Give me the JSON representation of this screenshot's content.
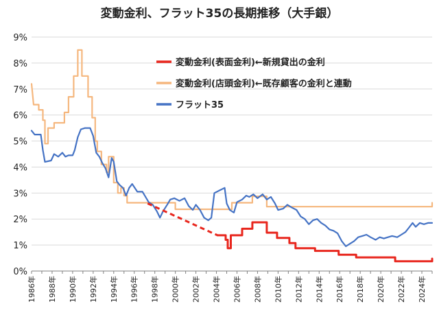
{
  "chart_data": {
    "type": "line",
    "title": "変動金利、フラット35の長期推移（大手銀）",
    "ylim": [
      0,
      9
    ],
    "xlim": [
      1986,
      2025
    ],
    "y_ticks": [
      {
        "value": 0,
        "label": "0%"
      },
      {
        "value": 1,
        "label": "1%"
      },
      {
        "value": 2,
        "label": "2%"
      },
      {
        "value": 3,
        "label": "3%"
      },
      {
        "value": 4,
        "label": "4%"
      },
      {
        "value": 5,
        "label": "5%"
      },
      {
        "value": 6,
        "label": "6%"
      },
      {
        "value": 7,
        "label": "7%"
      },
      {
        "value": 8,
        "label": "8%"
      },
      {
        "value": 9,
        "label": "9%"
      }
    ],
    "x_ticks": [
      {
        "value": 1986,
        "label": "1986年"
      },
      {
        "value": 1988,
        "label": "1988年"
      },
      {
        "value": 1990,
        "label": "1990年"
      },
      {
        "value": 1992,
        "label": "1992年"
      },
      {
        "value": 1994,
        "label": "1994年"
      },
      {
        "value": 1996,
        "label": "1996年"
      },
      {
        "value": 1998,
        "label": "1998年"
      },
      {
        "value": 2000,
        "label": "2000年"
      },
      {
        "value": 2002,
        "label": "2002年"
      },
      {
        "value": 2004,
        "label": "2004年"
      },
      {
        "value": 2006,
        "label": "2006年"
      },
      {
        "value": 2008,
        "label": "2008年"
      },
      {
        "value": 2010,
        "label": "2010年"
      },
      {
        "value": 2012,
        "label": "2012年"
      },
      {
        "value": 2014,
        "label": "2014年"
      },
      {
        "value": 2016,
        "label": "2016年"
      },
      {
        "value": 2018,
        "label": "2018年"
      },
      {
        "value": 2020,
        "label": "2020年"
      },
      {
        "value": 2022,
        "label": "2022年"
      },
      {
        "value": 2024,
        "label": "2024年"
      }
    ],
    "grid": "horizontal",
    "legend_position": "top-right",
    "series": [
      {
        "name": "変動金利(表面金利)←新規貸出の金利",
        "color": "#e8261d",
        "style": "step",
        "points": [
          [
            2004.1,
            1.375
          ],
          [
            2004.9,
            1.375
          ],
          [
            2004.9,
            1.2
          ],
          [
            2005.1,
            1.2
          ],
          [
            2005.1,
            0.875
          ],
          [
            2005.4,
            0.875
          ],
          [
            2005.4,
            1.375
          ],
          [
            2006.5,
            1.375
          ],
          [
            2006.5,
            1.625
          ],
          [
            2007.5,
            1.625
          ],
          [
            2007.5,
            1.875
          ],
          [
            2008.9,
            1.875
          ],
          [
            2008.9,
            1.475
          ],
          [
            2009.9,
            1.475
          ],
          [
            2009.9,
            1.275
          ],
          [
            2011.1,
            1.275
          ],
          [
            2011.1,
            1.075
          ],
          [
            2011.7,
            1.075
          ],
          [
            2011.7,
            0.875
          ],
          [
            2013.6,
            0.875
          ],
          [
            2013.6,
            0.775
          ],
          [
            2015.9,
            0.775
          ],
          [
            2015.9,
            0.625
          ],
          [
            2017.6,
            0.625
          ],
          [
            2017.6,
            0.525
          ],
          [
            2021.4,
            0.525
          ],
          [
            2021.4,
            0.375
          ],
          [
            2025.0,
            0.375
          ],
          [
            2025.0,
            0.475
          ]
        ]
      },
      {
        "name": "変動金利(店頭金利)←既存顧客の金利と連動",
        "color": "#f5b77e",
        "style": "step",
        "points": [
          [
            1986.0,
            7.2
          ],
          [
            1986.2,
            6.4
          ],
          [
            1986.7,
            6.4
          ],
          [
            1986.7,
            6.2
          ],
          [
            1987.1,
            6.2
          ],
          [
            1987.1,
            5.8
          ],
          [
            1987.3,
            5.8
          ],
          [
            1987.3,
            4.9
          ],
          [
            1987.6,
            4.9
          ],
          [
            1987.6,
            5.5
          ],
          [
            1988.2,
            5.5
          ],
          [
            1988.2,
            5.7
          ],
          [
            1989.2,
            5.7
          ],
          [
            1989.2,
            6.1
          ],
          [
            1989.6,
            6.1
          ],
          [
            1989.6,
            6.7
          ],
          [
            1990.1,
            6.7
          ],
          [
            1990.1,
            7.5
          ],
          [
            1990.5,
            7.5
          ],
          [
            1990.5,
            8.5
          ],
          [
            1990.9,
            8.5
          ],
          [
            1990.9,
            7.5
          ],
          [
            1991.5,
            7.5
          ],
          [
            1991.5,
            6.7
          ],
          [
            1991.9,
            6.7
          ],
          [
            1991.9,
            5.9
          ],
          [
            1992.2,
            5.9
          ],
          [
            1992.2,
            5.0
          ],
          [
            1992.4,
            5.0
          ],
          [
            1992.4,
            4.6
          ],
          [
            1992.8,
            4.6
          ],
          [
            1992.8,
            4.1
          ],
          [
            1993.3,
            4.1
          ],
          [
            1993.3,
            3.8
          ],
          [
            1993.5,
            3.8
          ],
          [
            1993.5,
            4.4
          ],
          [
            1994.0,
            4.4
          ],
          [
            1994.0,
            3.4
          ],
          [
            1994.4,
            3.4
          ],
          [
            1994.4,
            3.0
          ],
          [
            1994.7,
            3.0
          ],
          [
            1994.7,
            3.2
          ],
          [
            1995.0,
            3.2
          ],
          [
            1995.0,
            2.9
          ],
          [
            1995.3,
            2.9
          ],
          [
            1995.3,
            2.625
          ],
          [
            2000.0,
            2.625
          ],
          [
            2000.0,
            2.375
          ],
          [
            2005.5,
            2.375
          ],
          [
            2005.5,
            2.625
          ],
          [
            2007.5,
            2.625
          ],
          [
            2007.5,
            2.875
          ],
          [
            2008.9,
            2.875
          ],
          [
            2008.9,
            2.475
          ],
          [
            2025.0,
            2.475
          ],
          [
            2025.0,
            2.625
          ]
        ]
      },
      {
        "name": "フラット35",
        "color": "#4472c4",
        "style": "linear",
        "points": [
          [
            1986.0,
            5.4
          ],
          [
            1986.3,
            5.25
          ],
          [
            1986.9,
            5.25
          ],
          [
            1987.1,
            4.65
          ],
          [
            1987.3,
            4.2
          ],
          [
            1987.9,
            4.25
          ],
          [
            1988.2,
            4.5
          ],
          [
            1988.6,
            4.4
          ],
          [
            1989.0,
            4.55
          ],
          [
            1989.3,
            4.4
          ],
          [
            1989.6,
            4.45
          ],
          [
            1990.0,
            4.45
          ],
          [
            1990.2,
            4.65
          ],
          [
            1990.5,
            5.15
          ],
          [
            1990.8,
            5.45
          ],
          [
            1991.2,
            5.5
          ],
          [
            1991.7,
            5.5
          ],
          [
            1992.0,
            5.2
          ],
          [
            1992.3,
            4.55
          ],
          [
            1992.6,
            4.4
          ],
          [
            1992.9,
            4.15
          ],
          [
            1993.2,
            3.95
          ],
          [
            1993.5,
            3.6
          ],
          [
            1993.8,
            4.35
          ],
          [
            1994.0,
            4.2
          ],
          [
            1994.3,
            3.45
          ],
          [
            1994.6,
            3.3
          ],
          [
            1994.9,
            3.2
          ],
          [
            1995.2,
            2.9
          ],
          [
            1995.5,
            3.2
          ],
          [
            1995.8,
            3.35
          ],
          [
            1996.3,
            3.05
          ],
          [
            1996.8,
            3.05
          ],
          [
            1997.1,
            2.85
          ],
          [
            1997.4,
            2.65
          ],
          [
            1997.8,
            2.55
          ],
          [
            1998.2,
            2.3
          ],
          [
            1998.5,
            2.05
          ],
          [
            1998.8,
            2.3
          ],
          [
            1999.2,
            2.55
          ],
          [
            1999.5,
            2.75
          ],
          [
            1999.9,
            2.8
          ],
          [
            2000.4,
            2.7
          ],
          [
            2000.9,
            2.8
          ],
          [
            2001.3,
            2.5
          ],
          [
            2001.7,
            2.35
          ],
          [
            2002.0,
            2.55
          ],
          [
            2002.4,
            2.35
          ],
          [
            2002.8,
            2.05
          ],
          [
            2003.2,
            1.95
          ],
          [
            2003.5,
            2.05
          ],
          [
            2003.8,
            3.0
          ],
          [
            2004.3,
            3.1
          ],
          [
            2004.8,
            3.2
          ],
          [
            2005.0,
            2.6
          ],
          [
            2005.3,
            2.35
          ],
          [
            2005.7,
            2.25
          ],
          [
            2006.0,
            2.65
          ],
          [
            2006.5,
            2.75
          ],
          [
            2006.9,
            2.9
          ],
          [
            2007.2,
            2.85
          ],
          [
            2007.6,
            2.95
          ],
          [
            2008.0,
            2.8
          ],
          [
            2008.5,
            2.95
          ],
          [
            2008.9,
            2.75
          ],
          [
            2009.3,
            2.85
          ],
          [
            2009.7,
            2.6
          ],
          [
            2010.0,
            2.35
          ],
          [
            2010.5,
            2.4
          ],
          [
            2010.9,
            2.55
          ],
          [
            2011.3,
            2.45
          ],
          [
            2011.8,
            2.35
          ],
          [
            2012.2,
            2.1
          ],
          [
            2012.6,
            2.0
          ],
          [
            2013.0,
            1.8
          ],
          [
            2013.4,
            1.95
          ],
          [
            2013.8,
            2.0
          ],
          [
            2014.2,
            1.85
          ],
          [
            2014.6,
            1.75
          ],
          [
            2015.0,
            1.6
          ],
          [
            2015.4,
            1.55
          ],
          [
            2015.8,
            1.45
          ],
          [
            2016.2,
            1.15
          ],
          [
            2016.6,
            0.95
          ],
          [
            2017.0,
            1.05
          ],
          [
            2017.4,
            1.15
          ],
          [
            2017.8,
            1.3
          ],
          [
            2018.2,
            1.35
          ],
          [
            2018.6,
            1.4
          ],
          [
            2019.0,
            1.3
          ],
          [
            2019.5,
            1.2
          ],
          [
            2019.9,
            1.3
          ],
          [
            2020.3,
            1.25
          ],
          [
            2020.7,
            1.3
          ],
          [
            2021.1,
            1.35
          ],
          [
            2021.6,
            1.3
          ],
          [
            2022.0,
            1.4
          ],
          [
            2022.4,
            1.5
          ],
          [
            2022.7,
            1.65
          ],
          [
            2023.1,
            1.85
          ],
          [
            2023.4,
            1.7
          ],
          [
            2023.8,
            1.85
          ],
          [
            2024.2,
            1.8
          ],
          [
            2024.6,
            1.85
          ],
          [
            2025.0,
            1.85
          ]
        ]
      }
    ],
    "annotations": [
      {
        "type": "dashed-connector",
        "color": "#e8261d",
        "points": [
          [
            1997.3,
            2.6
          ],
          [
            2004.1,
            1.375
          ]
        ]
      }
    ]
  }
}
